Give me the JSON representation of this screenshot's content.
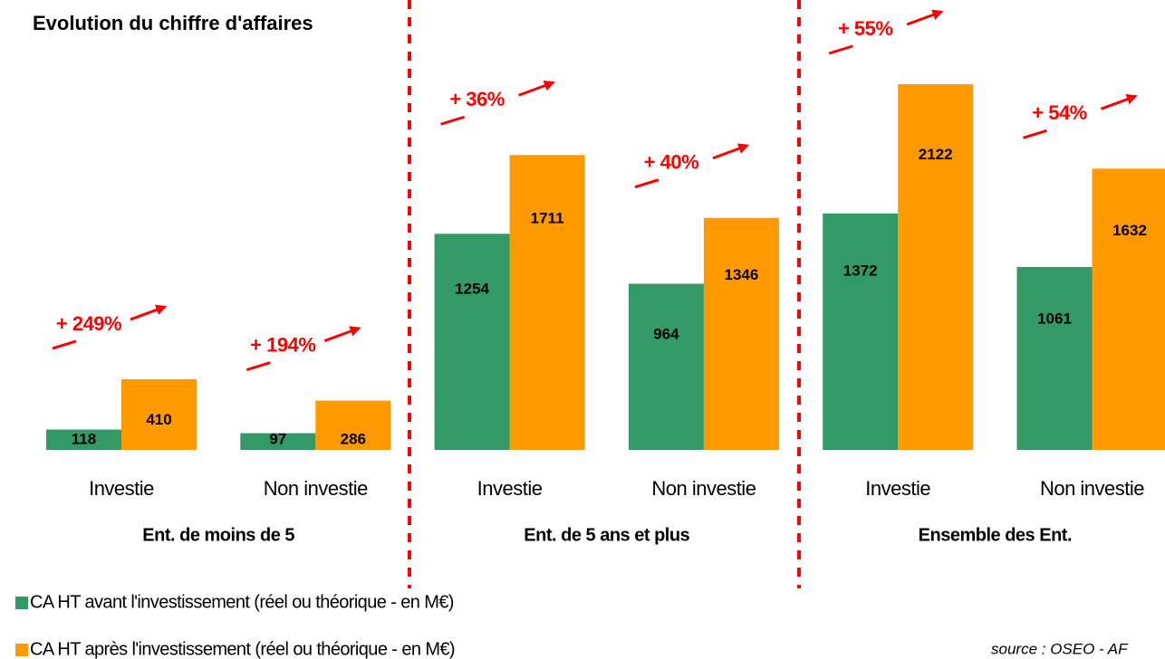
{
  "chart_data": {
    "type": "bar",
    "title": "Evolution du chiffre d'affaires",
    "categories": [
      "Investie",
      "Non investie",
      "Investie",
      "Non investie",
      "Investie",
      "Non investie"
    ],
    "groups": [
      "Ent. de moins de 5",
      "Ent. de 5 ans et plus",
      "Ensemble des Ent."
    ],
    "series": [
      {
        "name": "CA HT avant l'investissement (réel ou théorique - en M€)",
        "color": "#339966",
        "values": [
          118,
          97,
          1254,
          964,
          1372,
          1061
        ]
      },
      {
        "name": "CA HT après l'investissement (réel ou théorique - en M€)",
        "color": "#ff9900",
        "values": [
          410,
          286,
          1711,
          1346,
          2122,
          1632
        ]
      }
    ],
    "annotations": [
      "+ 249%",
      "+ 194%",
      "+ 36%",
      "+ 40%",
      "+ 55%",
      "+ 54%"
    ],
    "source": "source : OSEO - AF"
  }
}
